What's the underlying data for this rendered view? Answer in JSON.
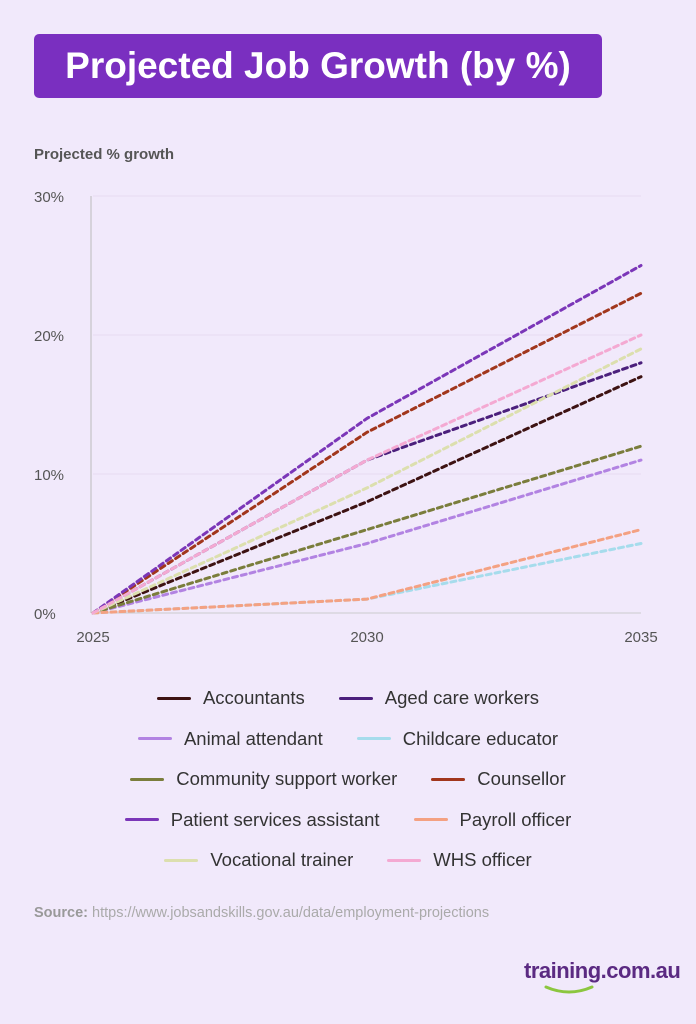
{
  "title": "Projected Job Growth (by %)",
  "chart_data": {
    "type": "line",
    "title": "Projected Job Growth (by %)",
    "ylabel": "Projected % growth",
    "xlabel": "",
    "x": [
      2025,
      2030,
      2035
    ],
    "x_tick_labels": [
      "2025",
      "2030",
      "2035"
    ],
    "ylim": [
      0,
      30
    ],
    "y_tick_labels": [
      "0%",
      "10%",
      "20%",
      "30%"
    ],
    "y_ticks": [
      0,
      10,
      20,
      30
    ],
    "grid": "horizontal",
    "line_style": "dashed",
    "legend_position": "bottom",
    "series": [
      {
        "name": "Accountants",
        "color": "#3d1212",
        "values": [
          0,
          8,
          17
        ]
      },
      {
        "name": "Aged care workers",
        "color": "#4b1f7c",
        "values": [
          0,
          11,
          18
        ]
      },
      {
        "name": "Animal attendant",
        "color": "#b283e2",
        "values": [
          0,
          5,
          11
        ]
      },
      {
        "name": "Childcare educator",
        "color": "#a6dcec",
        "values": [
          0,
          1,
          5
        ]
      },
      {
        "name": "Community support worker",
        "color": "#7a7d3c",
        "values": [
          0,
          6,
          12
        ]
      },
      {
        "name": "Counsellor",
        "color": "#a1361c",
        "values": [
          0,
          13,
          23
        ]
      },
      {
        "name": "Patient services assistant",
        "color": "#7b36b8",
        "values": [
          0,
          14,
          25
        ]
      },
      {
        "name": "Payroll officer",
        "color": "#f4a182",
        "values": [
          0,
          1,
          6
        ]
      },
      {
        "name": "Vocational trainer",
        "color": "#dcdfae",
        "values": [
          0,
          9,
          19
        ]
      },
      {
        "name": "WHS officer",
        "color": "#f4a9d2",
        "values": [
          0,
          11,
          20
        ]
      }
    ]
  },
  "source_label": "Source:",
  "source_url": "https://www.jobsandskills.gov.au/data/employment-projections",
  "logo_text": "training.com.au"
}
